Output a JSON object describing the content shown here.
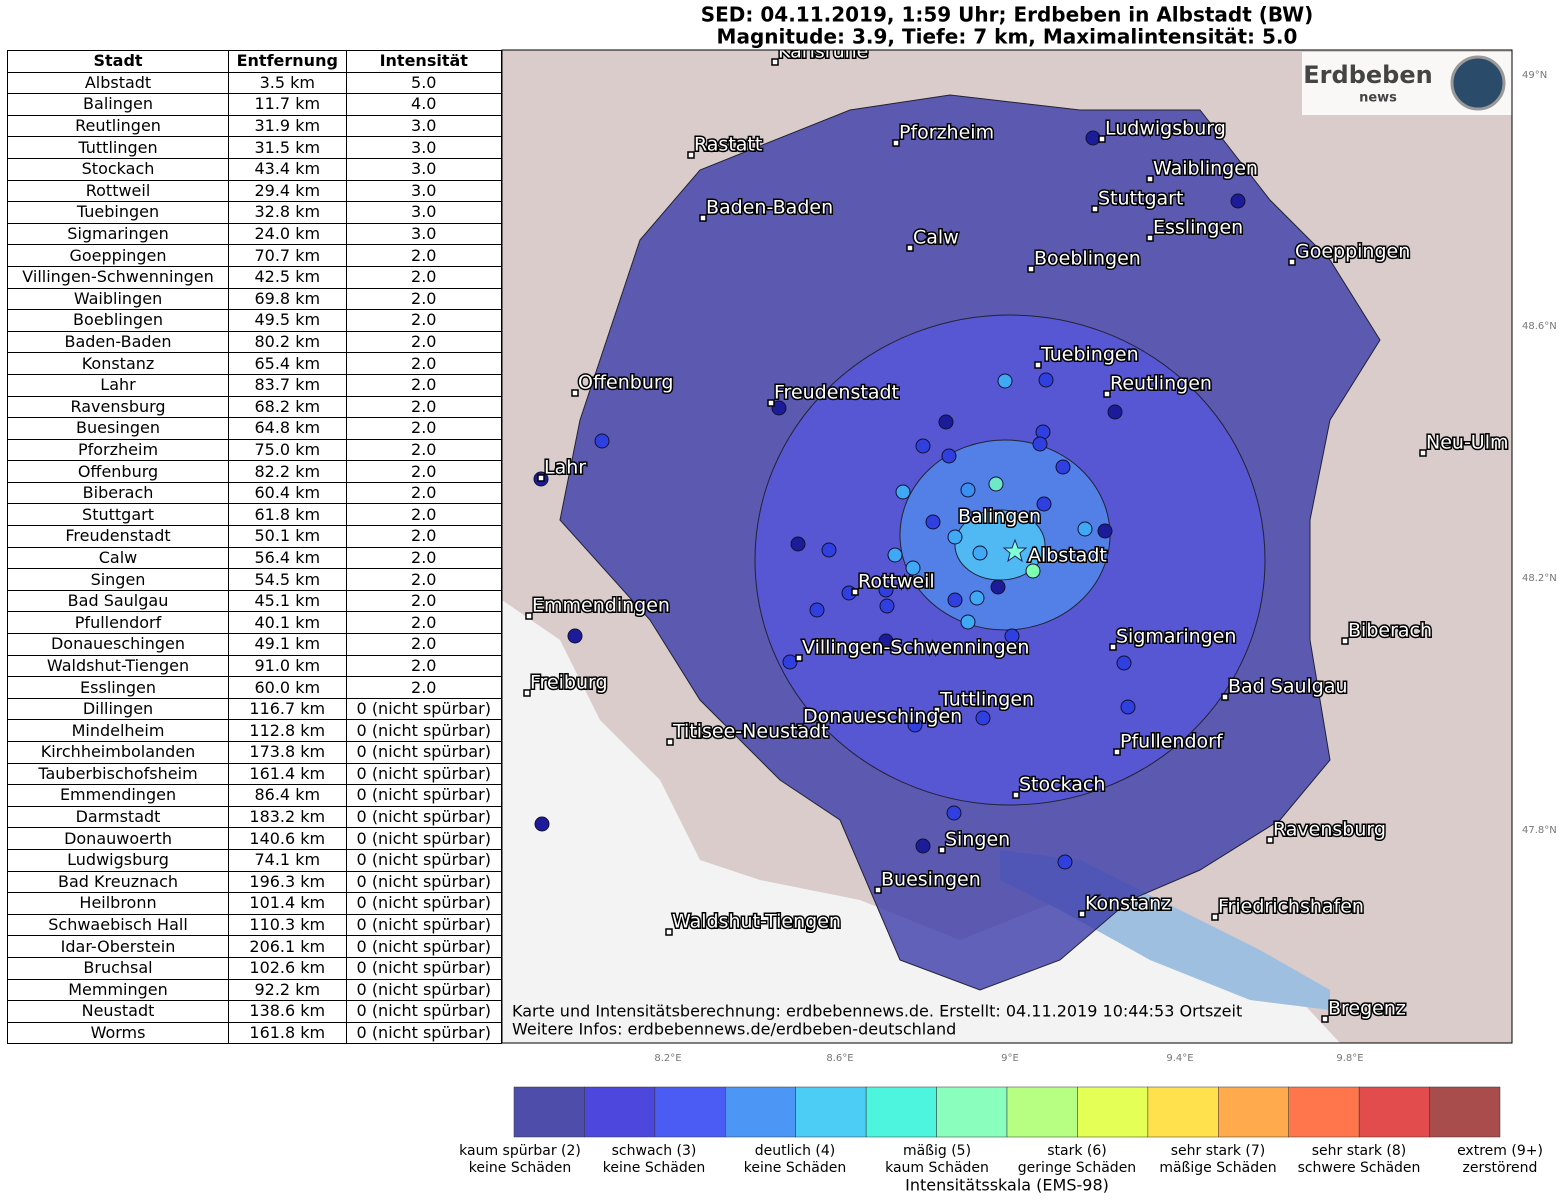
{
  "header": {
    "title_line_1": "SED: 04.11.2019, 1:59 Uhr; Erdbeben in Albstadt (BW)",
    "title_line_2": "Magnitude: 3.9, Tiefe: 7 km, Maximalintensität: 5.0"
  },
  "table": {
    "columns": [
      "Stadt",
      "Entfernung",
      "Intensität"
    ],
    "rows": [
      [
        "Albstadt",
        "3.5 km",
        "5.0"
      ],
      [
        "Balingen",
        "11.7 km",
        "4.0"
      ],
      [
        "Reutlingen",
        "31.9 km",
        "3.0"
      ],
      [
        "Tuttlingen",
        "31.5 km",
        "3.0"
      ],
      [
        "Stockach",
        "43.4 km",
        "3.0"
      ],
      [
        "Rottweil",
        "29.4 km",
        "3.0"
      ],
      [
        "Tuebingen",
        "32.8 km",
        "3.0"
      ],
      [
        "Sigmaringen",
        "24.0 km",
        "3.0"
      ],
      [
        "Goeppingen",
        "70.7 km",
        "2.0"
      ],
      [
        "Villingen-Schwenningen",
        "42.5 km",
        "2.0"
      ],
      [
        "Waiblingen",
        "69.8 km",
        "2.0"
      ],
      [
        "Boeblingen",
        "49.5 km",
        "2.0"
      ],
      [
        "Baden-Baden",
        "80.2 km",
        "2.0"
      ],
      [
        "Konstanz",
        "65.4 km",
        "2.0"
      ],
      [
        "Lahr",
        "83.7 km",
        "2.0"
      ],
      [
        "Ravensburg",
        "68.2 km",
        "2.0"
      ],
      [
        "Buesingen",
        "64.8 km",
        "2.0"
      ],
      [
        "Pforzheim",
        "75.0 km",
        "2.0"
      ],
      [
        "Offenburg",
        "82.2 km",
        "2.0"
      ],
      [
        "Biberach",
        "60.4 km",
        "2.0"
      ],
      [
        "Stuttgart",
        "61.8 km",
        "2.0"
      ],
      [
        "Freudenstadt",
        "50.1 km",
        "2.0"
      ],
      [
        "Calw",
        "56.4 km",
        "2.0"
      ],
      [
        "Singen",
        "54.5 km",
        "2.0"
      ],
      [
        "Bad Saulgau",
        "45.1 km",
        "2.0"
      ],
      [
        "Pfullendorf",
        "40.1 km",
        "2.0"
      ],
      [
        "Donaueschingen",
        "49.1 km",
        "2.0"
      ],
      [
        "Waldshut-Tiengen",
        "91.0 km",
        "2.0"
      ],
      [
        "Esslingen",
        "60.0 km",
        "2.0"
      ],
      [
        "Dillingen",
        "116.7 km",
        "0 (nicht spürbar)"
      ],
      [
        "Mindelheim",
        "112.8 km",
        "0 (nicht spürbar)"
      ],
      [
        "Kirchheimbolanden",
        "173.8 km",
        "0 (nicht spürbar)"
      ],
      [
        "Tauberbischofsheim",
        "161.4 km",
        "0 (nicht spürbar)"
      ],
      [
        "Emmendingen",
        "86.4 km",
        "0 (nicht spürbar)"
      ],
      [
        "Darmstadt",
        "183.2 km",
        "0 (nicht spürbar)"
      ],
      [
        "Donauwoerth",
        "140.6 km",
        "0 (nicht spürbar)"
      ],
      [
        "Ludwigsburg",
        "74.1 km",
        "0 (nicht spürbar)"
      ],
      [
        "Bad Kreuznach",
        "196.3 km",
        "0 (nicht spürbar)"
      ],
      [
        "Heilbronn",
        "101.4 km",
        "0 (nicht spürbar)"
      ],
      [
        "Schwaebisch Hall",
        "110.3 km",
        "0 (nicht spürbar)"
      ],
      [
        "Idar-Oberstein",
        "206.1 km",
        "0 (nicht spürbar)"
      ],
      [
        "Bruchsal",
        "102.6 km",
        "0 (nicht spürbar)"
      ],
      [
        "Memmingen",
        "92.2 km",
        "0 (nicht spürbar)"
      ],
      [
        "Neustadt",
        "138.6 km",
        "0 (nicht spürbar)"
      ],
      [
        "Worms",
        "161.8 km",
        "0 (nicht spürbar)"
      ]
    ]
  },
  "map": {
    "cities": [
      "Karlsruhe",
      "Rastatt",
      "Pforzheim",
      "Ludwigsburg",
      "Waiblingen",
      "Baden-Baden",
      "Stuttgart",
      "Esslingen",
      "Calw",
      "Goeppingen",
      "Boeblingen",
      "Tuebingen",
      "Reutlingen",
      "Offenburg",
      "Freudenstadt",
      "Lahr",
      "Neu-Ulm",
      "Balingen",
      "Albstadt",
      "Rottweil",
      "Emmendingen",
      "Sigmaringen",
      "Biberach",
      "Villingen-Schwenningen",
      "Freiburg",
      "Bad Saulgau",
      "Tuttlingen",
      "Donaueschingen",
      "Titisee-Neustadt",
      "Pfullendorf",
      "Stockach",
      "Ravensburg",
      "Singen",
      "Buesingen",
      "Konstanz",
      "Friedrichshafen",
      "Waldshut-Tiengen",
      "Bregenz"
    ],
    "lat_labels": [
      "49°N",
      "48.6°N",
      "48.2°N",
      "47.8°N"
    ],
    "lon_labels": [
      "8.2°E",
      "8.6°E",
      "9°E",
      "9.4°E",
      "9.8°E"
    ]
  },
  "logo": {
    "title": "Erdbeben",
    "subtitle": "news"
  },
  "credits": {
    "line_1": "Karte und Intensitätsberechnung: erdbebennews.de. Erstellt: 04.11.2019 10:44:53 Ortszeit",
    "line_2": "Weitere Infos: erdbebennews.de/erdbeben-deutschland"
  },
  "colorbar": {
    "title": "Intensitätsskala (EMS-98)",
    "colors": [
      "#4e4eaa",
      "#4d47dd",
      "#4b5cf5",
      "#4c96f5",
      "#4ccdf5",
      "#4df5df",
      "#8affbd",
      "#b6ff82",
      "#e4ff55",
      "#ffe14d",
      "#ffaa4d",
      "#ff764d",
      "#e24c4c",
      "#a84c4c"
    ],
    "labels": [
      [
        "kaum spürbar (2)",
        "keine Schäden"
      ],
      [
        "schwach (3)",
        "keine Schäden"
      ],
      [
        "deutlich (4)",
        "keine Schäden"
      ],
      [
        "mäßig (5)",
        "kaum Schäden"
      ],
      [
        "stark (6)",
        "geringe Schäden"
      ],
      [
        "sehr stark (7)",
        "mäßige Schäden"
      ],
      [
        "sehr stark (8)",
        "schwere Schäden"
      ],
      [
        "extrem (9+)",
        "zerstörend"
      ]
    ]
  }
}
